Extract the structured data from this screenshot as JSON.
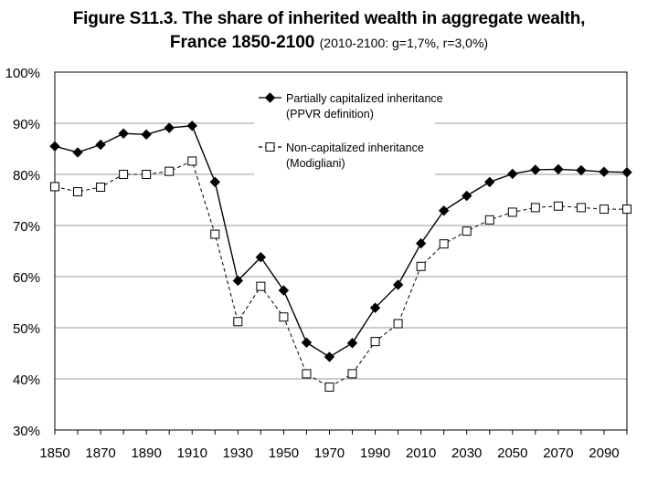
{
  "title": {
    "line1": "Figure S11.3. The share of inherited wealth in aggregate wealth,",
    "line2_main": "France 1850-2100",
    "line2_note": "(2010-2100: g=1,7%, r=3,0%)"
  },
  "chart_data": {
    "type": "line",
    "title": "Figure S11.3. The share of inherited wealth in aggregate wealth, France 1850-2100 (2010-2100: g=1,7%, r=3,0%)",
    "xlabel": "",
    "ylabel": "",
    "xlim": [
      1850,
      2100
    ],
    "ylim": [
      0.3,
      1.0
    ],
    "grid": "horizontal",
    "legend_position": "top-center",
    "x_ticks": [
      "1850",
      "1870",
      "1890",
      "1910",
      "1930",
      "1950",
      "1970",
      "1990",
      "2010",
      "2030",
      "2050",
      "2070",
      "2090"
    ],
    "y_ticks": [
      "30%",
      "40%",
      "50%",
      "60%",
      "70%",
      "80%",
      "90%",
      "100%"
    ],
    "series": [
      {
        "name": "Partially capitalized inheritance (PPVR definition)",
        "legend_line1": "Partially capitalized inheritance",
        "legend_line2": "(PPVR definition)",
        "marker": "diamond-filled",
        "line_style": "solid",
        "color": "#000000",
        "x": [
          1850,
          1860,
          1870,
          1880,
          1890,
          1900,
          1910,
          1920,
          1930,
          1940,
          1950,
          1960,
          1970,
          1980,
          1990,
          2000,
          2010,
          2020,
          2030,
          2040,
          2050,
          2060,
          2070,
          2080,
          2090,
          2100
        ],
        "values": [
          0.855,
          0.843,
          0.858,
          0.88,
          0.878,
          0.891,
          0.895,
          0.785,
          0.592,
          0.638,
          0.573,
          0.471,
          0.443,
          0.47,
          0.539,
          0.584,
          0.665,
          0.729,
          0.758,
          0.785,
          0.801,
          0.809,
          0.81,
          0.808,
          0.805,
          0.804
        ]
      },
      {
        "name": "Non-capitalized inheritance (Modigliani)",
        "legend_line1": "Non-capitalized inheritance",
        "legend_line2": "(Modigliani)",
        "marker": "square-open",
        "line_style": "dashed",
        "color": "#000000",
        "x": [
          1850,
          1860,
          1870,
          1880,
          1890,
          1900,
          1910,
          1920,
          1930,
          1940,
          1950,
          1960,
          1970,
          1980,
          1990,
          2000,
          2010,
          2020,
          2030,
          2040,
          2050,
          2060,
          2070,
          2080,
          2090,
          2100
        ],
        "values": [
          0.776,
          0.766,
          0.775,
          0.8,
          0.8,
          0.806,
          0.826,
          0.683,
          0.512,
          0.581,
          0.521,
          0.41,
          0.384,
          0.41,
          0.473,
          0.508,
          0.62,
          0.664,
          0.689,
          0.711,
          0.726,
          0.735,
          0.738,
          0.735,
          0.732,
          0.732
        ]
      }
    ]
  }
}
